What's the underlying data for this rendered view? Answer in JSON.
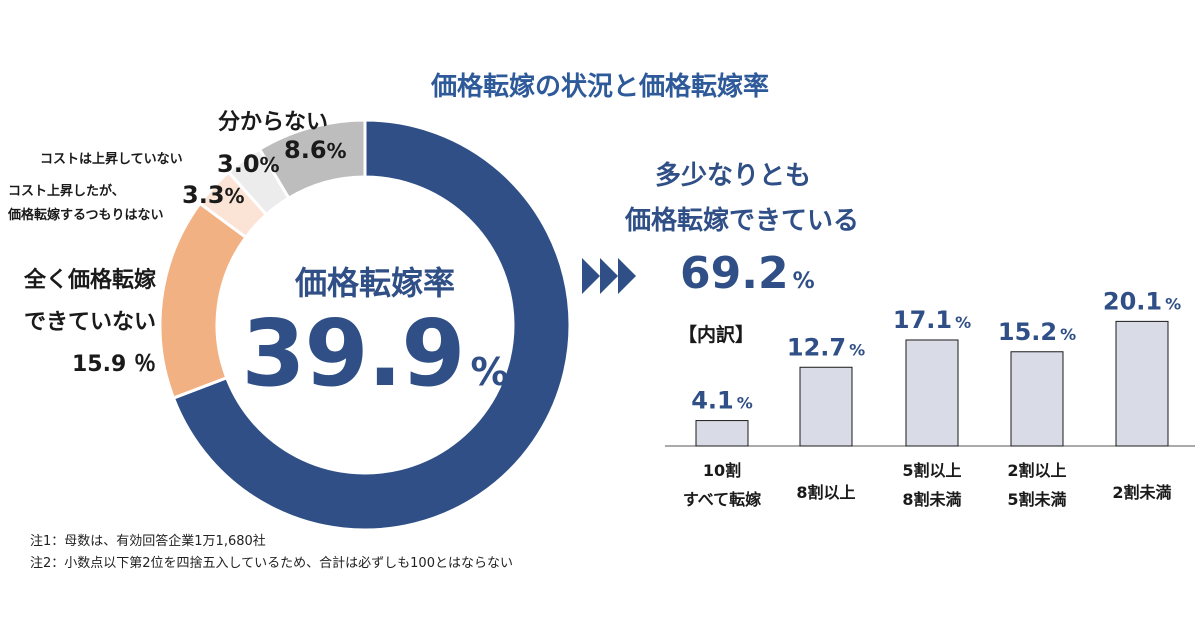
{
  "title": "価格転嫁の状況と価格転嫁率",
  "colors": {
    "accent": "#2f4f86",
    "title": "#2e5a9a",
    "not_passed": "#f2b182",
    "no_intention": "#fbe3d6",
    "no_cost_rise": "#ececec",
    "unknown": "#bdbdbd",
    "bar_fill": "#d9dce6",
    "bar_stroke": "#1a1a1a"
  },
  "donut": {
    "center_label": "価格転嫁率",
    "center_value": "39.9",
    "center_unit": "%",
    "segments": [
      {
        "key": "passed",
        "label_lines": [
          "多少なりとも",
          "価格転嫁できている"
        ],
        "value": 69.2
      },
      {
        "key": "not_passed",
        "label_lines": [
          "全く価格転嫁",
          "できていない"
        ],
        "value_text": "15.9 ％",
        "value": 15.9
      },
      {
        "key": "no_intention",
        "label_lines": [
          "コスト上昇したが、",
          "価格転嫁するつもりはない"
        ],
        "value_text": "3.3",
        "pct": "%",
        "value": 3.3
      },
      {
        "key": "no_cost_rise",
        "label_lines": [
          "コストは上昇していない"
        ],
        "value_text": "3.0",
        "pct": "%",
        "value": 3.0
      },
      {
        "key": "unknown",
        "label_lines": [
          "分からない"
        ],
        "value_text": "8.6",
        "pct": "%",
        "value": 8.6
      }
    ]
  },
  "right": {
    "label_lines": [
      "多少なりとも",
      "価格転嫁できている"
    ],
    "value": "69.2",
    "unit": "%",
    "breakdown_label": "【内訳】"
  },
  "chart_data": {
    "type": "bar",
    "categories": [
      [
        "10割",
        "すべて転嫁"
      ],
      [
        "8割以上"
      ],
      [
        "5割以上",
        "8割未満"
      ],
      [
        "2割以上",
        "5割未満"
      ],
      [
        "2割未満"
      ]
    ],
    "values": [
      4.1,
      12.7,
      17.1,
      15.2,
      20.1
    ],
    "value_labels": [
      "4.1",
      "12.7",
      "17.1",
      "15.2",
      "20.1"
    ],
    "unit": "%"
  },
  "notes": [
    "注1：母数は、有効回答企業1万1,680社",
    "注2：小数点以下第2位を四捨五入しているため、合計は必ずしも100とはならない"
  ]
}
